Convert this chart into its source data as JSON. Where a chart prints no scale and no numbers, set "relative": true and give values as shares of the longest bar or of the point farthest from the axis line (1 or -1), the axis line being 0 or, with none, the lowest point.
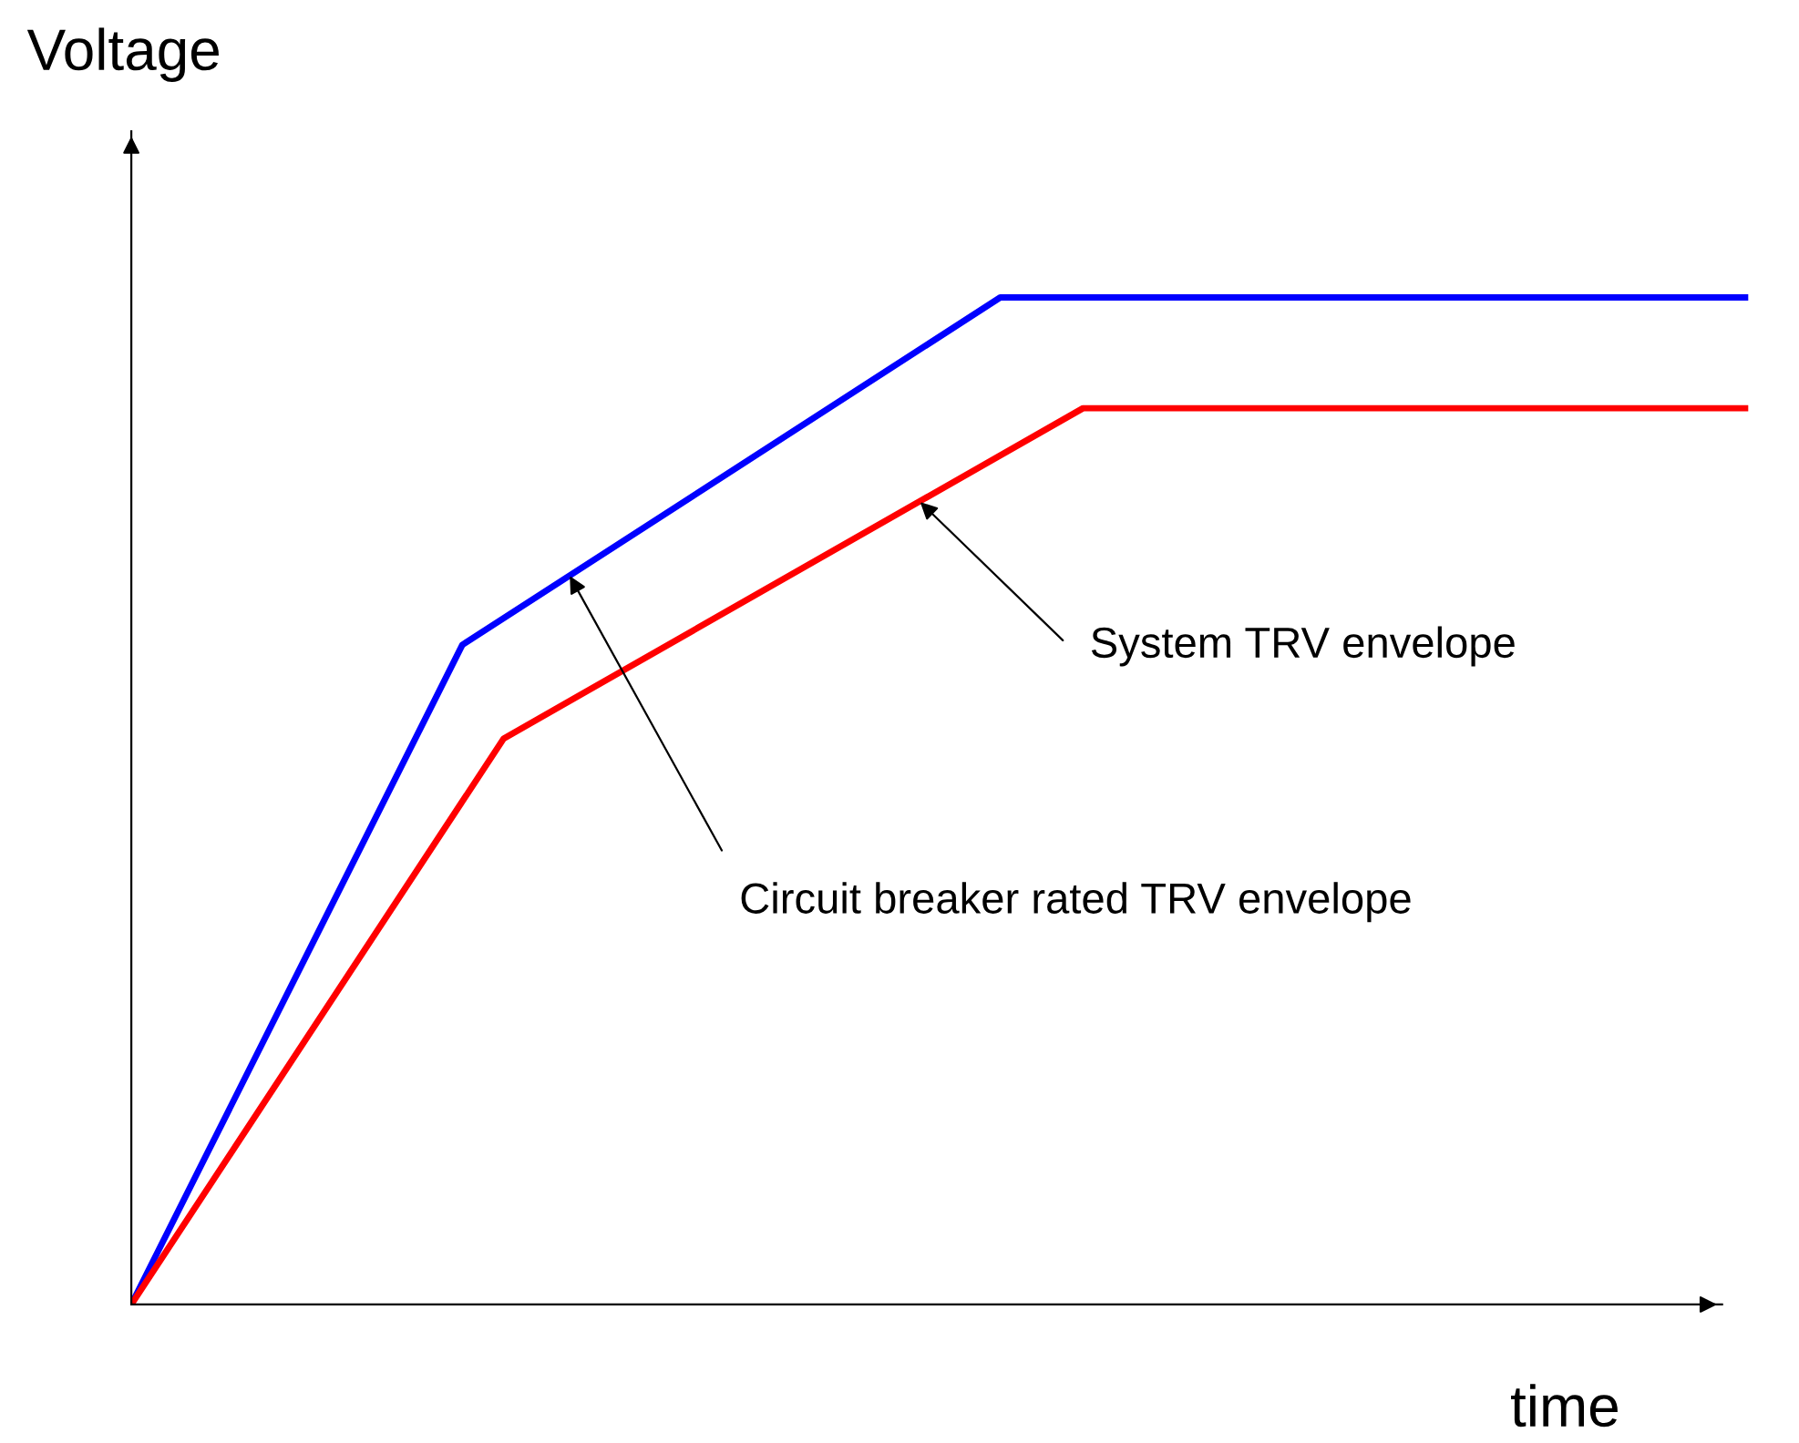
{
  "chart_data": {
    "type": "line",
    "relative": true,
    "xlabel": "time",
    "ylabel": "Voltage",
    "tick_labels": false,
    "legend": false,
    "marker": "none",
    "line_style": "solid",
    "categories": [
      null,
      null,
      null,
      null,
      null,
      null,
      null,
      null,
      null,
      null,
      null,
      null,
      null,
      null,
      null,
      null,
      null,
      null,
      null,
      null,
      null,
      null,
      null,
      null,
      null,
      null,
      null,
      null,
      null,
      null,
      null,
      null,
      null,
      null,
      null,
      null,
      null,
      null,
      null,
      null
    ],
    "series": [
      {
        "color": "#0000ff",
        "values": [
          0,
          null,
          null,
          null,
          null,
          null,
          null,
          null,
          0.655,
          null,
          null,
          null,
          null,
          null,
          null,
          null,
          null,
          null,
          null,
          null,
          null,
          1,
          null,
          null,
          null,
          null,
          null,
          null,
          null,
          null,
          null,
          null,
          null,
          null,
          null,
          null,
          null,
          null,
          null,
          1
        ]
      },
      {
        "color": "#ff0000",
        "values": [
          0,
          null,
          null,
          null,
          null,
          null,
          null,
          null,
          null,
          0.562,
          null,
          null,
          null,
          null,
          null,
          null,
          null,
          null,
          null,
          null,
          null,
          null,
          null,
          0.89,
          null,
          null,
          null,
          null,
          null,
          null,
          null,
          null,
          null,
          null,
          null,
          null,
          null,
          null,
          null,
          0.89
        ]
      }
    ],
    "annotations": [
      "System TRV envelope",
      "Circuit breaker rated TRV envelope"
    ]
  }
}
